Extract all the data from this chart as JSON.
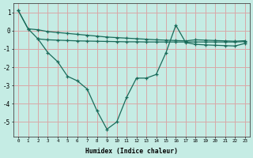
{
  "xlabel": "Humidex (Indice chaleur)",
  "bg_color": "#c5ece4",
  "grid_color": "#d8a8a8",
  "line_color": "#1a6b5a",
  "line1_x": [
    0,
    1,
    2,
    3,
    4,
    5,
    6,
    7,
    8,
    9,
    10,
    11,
    12,
    13,
    14,
    15,
    16,
    17,
    18,
    19,
    20,
    21,
    22,
    23
  ],
  "line1_y": [
    1.1,
    0.1,
    0.05,
    -0.05,
    -0.1,
    -0.15,
    -0.2,
    -0.25,
    -0.3,
    -0.35,
    -0.38,
    -0.41,
    -0.44,
    -0.47,
    -0.5,
    -0.52,
    -0.54,
    -0.56,
    -0.5,
    -0.52,
    -0.54,
    -0.56,
    -0.58,
    -0.55
  ],
  "line2_x": [
    0,
    1,
    2,
    3,
    4,
    5,
    6,
    7,
    8,
    9,
    10,
    11,
    12,
    13,
    14,
    15,
    16,
    17,
    18,
    19,
    20,
    21,
    22,
    23
  ],
  "line2_y": [
    1.1,
    0.1,
    -0.45,
    -1.2,
    -1.7,
    -2.5,
    -2.75,
    -3.2,
    -4.4,
    -5.4,
    -5.0,
    -3.65,
    -2.6,
    -2.6,
    -2.4,
    -1.2,
    0.3,
    -0.65,
    -0.75,
    -0.78,
    -0.8,
    -0.82,
    -0.84,
    -0.7
  ],
  "line3_x": [
    2,
    3,
    4,
    5,
    6,
    7,
    8,
    9,
    10,
    11,
    12,
    13,
    14,
    15,
    16,
    17,
    18,
    19,
    20,
    21,
    22,
    23
  ],
  "line3_y": [
    -0.45,
    -0.5,
    -0.52,
    -0.54,
    -0.56,
    -0.57,
    -0.58,
    -0.59,
    -0.6,
    -0.61,
    -0.61,
    -0.62,
    -0.62,
    -0.62,
    -0.62,
    -0.62,
    -0.62,
    -0.62,
    -0.62,
    -0.62,
    -0.62,
    -0.6
  ],
  "ylim": [
    -5.8,
    1.5
  ],
  "xlim": [
    -0.5,
    23.5
  ],
  "yticks": [
    1,
    0,
    -1,
    -2,
    -3,
    -4,
    -5
  ],
  "xticks": [
    0,
    1,
    2,
    3,
    4,
    5,
    6,
    7,
    8,
    9,
    10,
    11,
    12,
    13,
    14,
    15,
    16,
    17,
    18,
    19,
    20,
    21,
    22,
    23
  ]
}
